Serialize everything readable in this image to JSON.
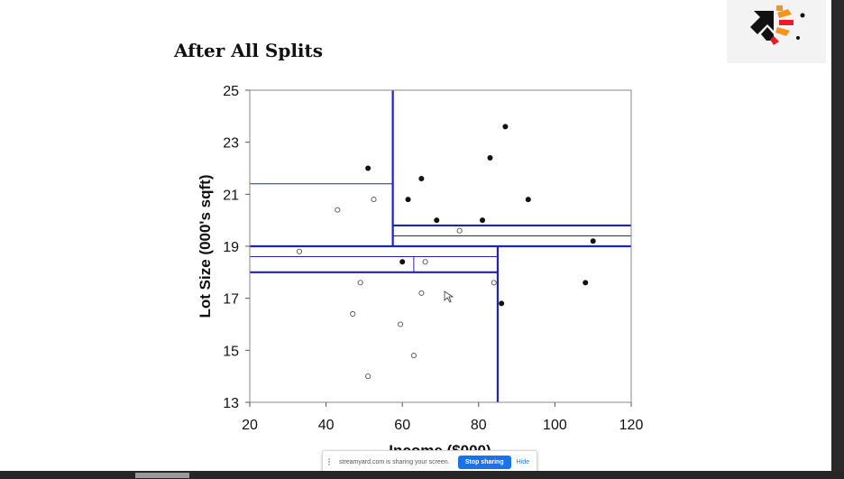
{
  "slide": {
    "title": "After All Splits"
  },
  "logo": {
    "icon": "brand-arrow-logo-icon",
    "colors": [
      "#111111",
      "#f7941d",
      "#ed1c24"
    ]
  },
  "chart_data": {
    "type": "scatter",
    "title": "",
    "xlabel": "Income ($000)",
    "ylabel": "Lot Size (000's sqft)",
    "xlim": [
      20,
      120
    ],
    "ylim": [
      13,
      25
    ],
    "xticks": [
      20,
      40,
      60,
      80,
      100,
      120
    ],
    "yticks": [
      13,
      15,
      17,
      19,
      21,
      23,
      25
    ],
    "grid": false,
    "series": [
      {
        "marker": "filled-circle",
        "color": "#111111",
        "points": [
          [
            51,
            22.0
          ],
          [
            65,
            21.6
          ],
          [
            61.5,
            20.8
          ],
          [
            69,
            20.0
          ],
          [
            81,
            20.0
          ],
          [
            83,
            22.4
          ],
          [
            87,
            23.6
          ],
          [
            93,
            20.8
          ],
          [
            110,
            19.2
          ],
          [
            108,
            17.6
          ],
          [
            86,
            16.8
          ],
          [
            60,
            18.4
          ]
        ]
      },
      {
        "marker": "open-circle",
        "color": "#555555",
        "points": [
          [
            43,
            20.4
          ],
          [
            52.5,
            20.8
          ],
          [
            33,
            18.8
          ],
          [
            75,
            19.6
          ],
          [
            66,
            18.4
          ],
          [
            49,
            17.6
          ],
          [
            65,
            17.2
          ],
          [
            84,
            17.6
          ],
          [
            47,
            16.4
          ],
          [
            59.5,
            16.0
          ],
          [
            63,
            14.8
          ],
          [
            51,
            14.0
          ]
        ]
      }
    ],
    "splits": [
      {
        "orient": "v",
        "at": 57.5,
        "from": 19,
        "to": 25,
        "weight": "heavy"
      },
      {
        "orient": "h",
        "at": 19,
        "from": 20,
        "to": 120,
        "weight": "heavy"
      },
      {
        "orient": "h",
        "at": 21.4,
        "from": 20,
        "to": 57.5,
        "weight": "light"
      },
      {
        "orient": "h",
        "at": 19.8,
        "from": 57.5,
        "to": 120,
        "weight": "heavy"
      },
      {
        "orient": "h",
        "at": 19.4,
        "from": 57.5,
        "to": 120,
        "weight": "light"
      },
      {
        "orient": "v",
        "at": 85,
        "from": 13,
        "to": 19,
        "weight": "heavy"
      },
      {
        "orient": "h",
        "at": 18.0,
        "from": 20,
        "to": 85,
        "weight": "heavy"
      },
      {
        "orient": "h",
        "at": 18.6,
        "from": 20,
        "to": 85,
        "weight": "light"
      },
      {
        "orient": "v",
        "at": 63,
        "from": 18.0,
        "to": 18.6,
        "weight": "light"
      }
    ],
    "split_color": "#2323b3"
  },
  "share_bar": {
    "message": "streamyard.com is sharing your screen.",
    "stop_label": "Stop sharing",
    "hide_label": "Hide"
  }
}
